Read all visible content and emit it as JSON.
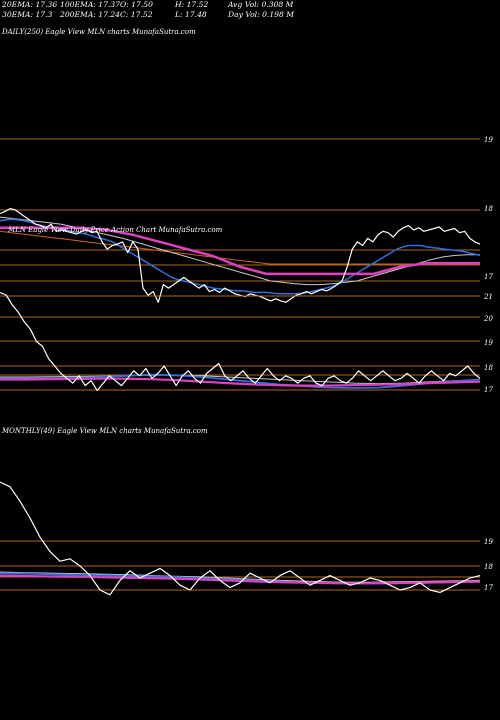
{
  "header": {
    "row1": [
      {
        "label": "20EMA: 17.36"
      },
      {
        "label": "100EMA: 17.37"
      },
      {
        "label": "O: 17.50"
      },
      {
        "label": "H: 17.52"
      },
      {
        "label": "Avg Vol: 0.308 M"
      }
    ],
    "row2": [
      {
        "label": "30EMA: 17.3"
      },
      {
        "label": "200EMA: 17.24"
      },
      {
        "label": "C: 17.52"
      },
      {
        "label": "L: 17.48"
      },
      {
        "label": "Day Vol: 0.198 M"
      }
    ]
  },
  "colors": {
    "background": "#000000",
    "gridline": "#b5651d",
    "price": "#ffffff",
    "ema_blue": "#2f6fdf",
    "ema_magenta": "#e040c0",
    "ema_gray": "#c8c8c8",
    "ema_orange": "#c8651d"
  },
  "chart_data": [
    {
      "type": "line",
      "title": "DAILY(250) Eagle  View  MLN  charts MunafaSutra.com",
      "note_overlay": "price panel",
      "y_ticks": [
        "19",
        "18",
        "17"
      ],
      "ylim": [
        16.6,
        19.4
      ],
      "series": [
        {
          "values": [
            17.95,
            17.98,
            18.02,
            18.0,
            17.95,
            17.9,
            17.85,
            17.8,
            17.78,
            17.75,
            17.8,
            17.7,
            17.72,
            17.7,
            17.68,
            17.66,
            17.7,
            17.72,
            17.68,
            17.7,
            17.55,
            17.45,
            17.5,
            17.52,
            17.55,
            17.4,
            17.55,
            17.45,
            16.9,
            16.8,
            16.85,
            16.7,
            16.95,
            16.9,
            16.95,
            17.0,
            17.05,
            17.0,
            16.95,
            16.9,
            16.95,
            16.85,
            16.88,
            16.84,
            16.9,
            16.86,
            16.82,
            16.8,
            16.78,
            16.82,
            16.8,
            16.78,
            16.75,
            16.72,
            16.75,
            16.72,
            16.7,
            16.75,
            16.8,
            16.82,
            16.85,
            16.82,
            16.85,
            16.88,
            16.86,
            16.9,
            16.95,
            17.0,
            17.2,
            17.45,
            17.55,
            17.5,
            17.6,
            17.55,
            17.65,
            17.7,
            17.68,
            17.62,
            17.7,
            17.75,
            17.78,
            17.72,
            17.75,
            17.7,
            17.72,
            17.74,
            17.76,
            17.7,
            17.72,
            17.74,
            17.68,
            17.7,
            17.6,
            17.55,
            17.52
          ]
        },
        {
          "values": [
            17.85,
            17.86,
            17.87,
            17.86,
            17.85,
            17.83,
            17.8,
            17.78,
            17.76,
            17.75,
            17.74,
            17.72,
            17.7,
            17.68,
            17.67,
            17.65,
            17.62,
            17.6,
            17.58,
            17.55,
            17.5,
            17.45,
            17.4,
            17.35,
            17.3,
            17.25,
            17.2,
            17.15,
            17.1,
            17.05,
            17.02,
            17.0,
            16.98,
            16.96,
            16.94,
            16.92,
            16.9,
            16.89,
            16.88,
            16.87,
            16.86,
            16.86,
            16.85,
            16.84,
            16.84,
            16.84,
            16.83,
            16.82,
            16.82,
            16.82,
            16.82,
            16.83,
            16.84,
            16.86,
            16.88,
            16.9,
            16.92,
            16.95,
            17.0,
            17.05,
            17.1,
            17.15,
            17.2,
            17.25,
            17.3,
            17.35,
            17.4,
            17.45,
            17.48,
            17.5,
            17.5,
            17.5,
            17.48,
            17.47,
            17.46,
            17.45,
            17.44,
            17.43,
            17.42,
            17.4,
            17.38,
            17.36
          ]
        },
        {
          "values": [
            17.7,
            17.68,
            17.66,
            17.64,
            17.62,
            17.6,
            17.58,
            17.56,
            17.54,
            17.52,
            17.5,
            17.48,
            17.46,
            17.44,
            17.42,
            17.4,
            17.38,
            17.36,
            17.34,
            17.32,
            17.3,
            17.28,
            17.26,
            17.24,
            17.24,
            17.24,
            17.24,
            17.24,
            17.24,
            17.24,
            17.24,
            17.24,
            17.24,
            17.24,
            17.24,
            17.24,
            17.24,
            17.24,
            17.24,
            17.24,
            17.24,
            17.24
          ]
        },
        {
          "values": [
            17.9,
            17.88,
            17.86,
            17.84,
            17.82,
            17.8,
            17.76,
            17.72,
            17.68,
            17.64,
            17.6,
            17.55,
            17.5,
            17.45,
            17.4,
            17.35,
            17.3,
            17.25,
            17.2,
            17.15,
            17.1,
            17.05,
            17.0,
            16.98,
            16.96,
            16.95,
            16.95,
            16.96,
            16.98,
            17.0,
            17.05,
            17.1,
            17.15,
            17.2,
            17.25,
            17.3,
            17.34,
            17.36,
            17.37,
            17.37
          ]
        }
      ]
    },
    {
      "type": "line",
      "note_overlay": "oscillator panel",
      "y_ticks": [
        "21",
        "20",
        "19",
        "18",
        "17"
      ],
      "series": [
        {
          "values": [
            21,
            20.9,
            20.5,
            20.2,
            19.8,
            19.5,
            19.0,
            18.8,
            18.3,
            18.0,
            17.7,
            17.5,
            17.3,
            17.6,
            17.2,
            17.4,
            17.0,
            17.3,
            17.6,
            17.4,
            17.2,
            17.5,
            17.8,
            17.6,
            17.9,
            17.5,
            17.7,
            18.0,
            17.6,
            17.2,
            17.6,
            17.8,
            17.5,
            17.3,
            17.7,
            17.9,
            18.1,
            17.6,
            17.4,
            17.6,
            17.8,
            17.5,
            17.3,
            17.6,
            17.9,
            17.6,
            17.4,
            17.6,
            17.5,
            17.3,
            17.5,
            17.6,
            17.3,
            17.2,
            17.5,
            17.6,
            17.4,
            17.3,
            17.5,
            17.8,
            17.6,
            17.4,
            17.6,
            17.8,
            17.6,
            17.4,
            17.5,
            17.7,
            17.5,
            17.3,
            17.6,
            17.8,
            17.6,
            17.4,
            17.7,
            17.6,
            17.8,
            18.0,
            17.7,
            17.5
          ]
        }
      ]
    },
    {
      "type": "line",
      "title": "MONTHLY(49) Eagle  View  MLN  charts MunafaSutra.com",
      "y_ticks": [
        "19",
        "18",
        "17"
      ],
      "series": [
        {
          "values": [
            21.5,
            21.3,
            20.7,
            20.0,
            19.2,
            18.6,
            18.2,
            18.3,
            18.0,
            17.6,
            17.0,
            16.8,
            17.4,
            17.8,
            17.5,
            17.7,
            17.9,
            17.6,
            17.2,
            17.0,
            17.5,
            17.8,
            17.4,
            17.1,
            17.3,
            17.7,
            17.5,
            17.3,
            17.6,
            17.8,
            17.5,
            17.2,
            17.4,
            17.6,
            17.4,
            17.2,
            17.3,
            17.5,
            17.4,
            17.2,
            17.0,
            17.1,
            17.3,
            17.0,
            16.9,
            17.1,
            17.3,
            17.5,
            17.6
          ]
        }
      ]
    }
  ],
  "panels": {
    "daily_title": "DAILY(250) Eagle  View  MLN  charts MunafaSutra.com",
    "monthly_title": "MONTHLY(49) Eagle  View  MLN  charts MunafaSutra.com",
    "daily_overlay_text": "MLN Eagle View Daily Price Action Chart MunafaSutra.com"
  }
}
